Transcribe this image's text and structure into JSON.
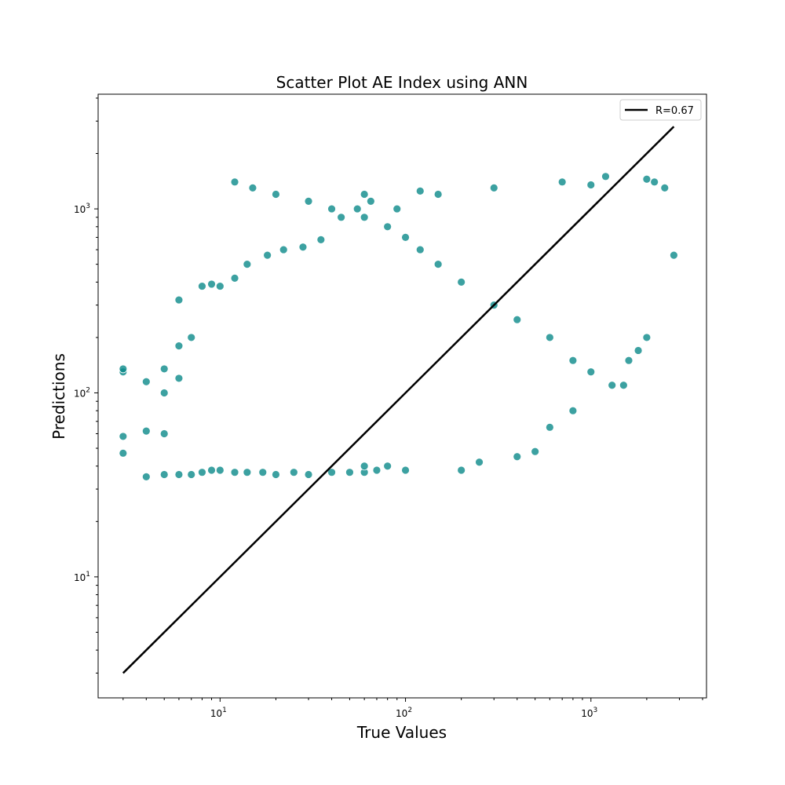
{
  "chart_data": {
    "type": "scatter",
    "title": "Scatter Plot AE Index using ANN",
    "xlabel": "True Values",
    "ylabel": "Predictions",
    "xscale": "log",
    "yscale": "log",
    "xlim": [
      2.2,
      4200
    ],
    "ylim": [
      2.2,
      4200
    ],
    "grid": false,
    "legend_position": "top-right",
    "marker_color": "#0b8a8a",
    "marker_edge_color": "#ffffff",
    "line_color": "#000000",
    "x_ticks": [
      {
        "value": 10,
        "base": "10",
        "exp": "1"
      },
      {
        "value": 100,
        "base": "10",
        "exp": "2"
      },
      {
        "value": 1000,
        "base": "10",
        "exp": "3"
      }
    ],
    "y_ticks": [
      {
        "value": 10,
        "base": "10",
        "exp": "1"
      },
      {
        "value": 100,
        "base": "10",
        "exp": "2"
      },
      {
        "value": 1000,
        "base": "10",
        "exp": "3"
      }
    ],
    "series": [
      {
        "name": "R=0.67",
        "kind": "line",
        "x": [
          3,
          2800
        ],
        "y": [
          3,
          2800
        ]
      },
      {
        "kind": "scatter",
        "x": [
          3,
          3,
          3,
          3,
          4,
          4,
          4,
          5,
          5,
          5,
          5,
          6,
          6,
          6,
          6,
          7,
          7,
          8,
          8,
          9,
          9,
          10,
          10,
          12,
          12,
          14,
          14,
          17,
          18,
          20,
          22,
          25,
          28,
          30,
          35,
          40,
          45,
          50,
          55,
          60,
          60,
          60,
          65,
          70,
          80,
          90,
          100,
          120,
          150,
          200,
          250,
          300,
          400,
          500,
          600,
          700,
          800,
          1000,
          1200,
          1500,
          1800,
          2000,
          2200,
          2500,
          2800,
          2000,
          1600,
          1300,
          1000,
          800,
          600,
          400,
          300,
          200,
          150,
          120,
          100,
          80,
          60,
          40,
          30,
          20,
          15,
          12
        ],
        "y": [
          47,
          58,
          130,
          135,
          35,
          62,
          115,
          36,
          60,
          100,
          135,
          36,
          120,
          180,
          320,
          36,
          200,
          37,
          380,
          38,
          390,
          38,
          380,
          37,
          420,
          37,
          500,
          37,
          560,
          36,
          600,
          37,
          620,
          36,
          680,
          37,
          900,
          37,
          1000,
          37,
          40,
          1200,
          1100,
          38,
          40,
          1000,
          38,
          1250,
          1200,
          38,
          42,
          1300,
          45,
          48,
          65,
          1400,
          80,
          1350,
          1500,
          110,
          170,
          1450,
          1400,
          1300,
          560,
          200,
          150,
          110,
          130,
          150,
          200,
          250,
          300,
          400,
          500,
          600,
          700,
          800,
          900,
          1000,
          1100,
          1200,
          1300,
          1400
        ]
      }
    ]
  }
}
